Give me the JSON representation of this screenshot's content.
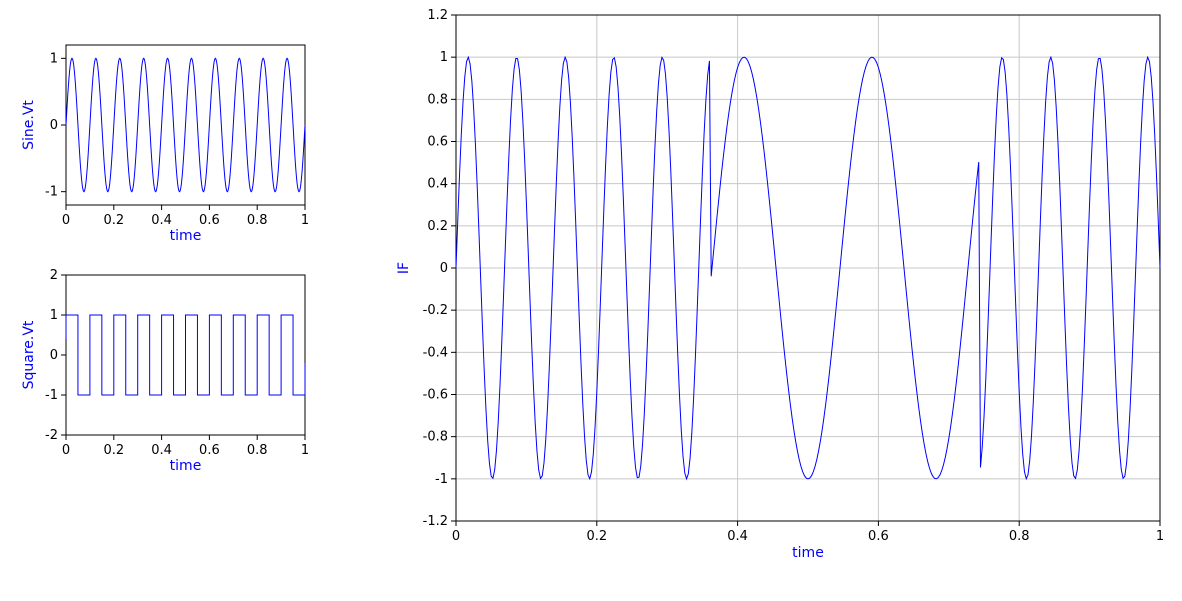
{
  "colors": {
    "trace": "#0000ff",
    "grid": "#c8c8c8",
    "frame": "#000000",
    "label": "#0000ff"
  },
  "chart_data": [
    {
      "id": "sine",
      "type": "line",
      "title": "",
      "xlabel": "time",
      "ylabel": "Sine.Vt",
      "xlim": [
        0,
        1
      ],
      "ylim": [
        -1.2,
        1.2
      ],
      "xticks": [
        0,
        0.2,
        0.4,
        0.6,
        0.8,
        1
      ],
      "xtick_labels": [
        "0",
        "0.2",
        "0.4",
        "0.6",
        "0.8",
        "1"
      ],
      "yticks": [
        -1,
        0,
        1
      ],
      "ytick_labels": [
        "-1",
        "0",
        "1"
      ],
      "grid": false,
      "series": [
        {
          "function": "sin(2*pi*f*time)",
          "frequency_hz": 10,
          "amplitude": 1,
          "x_samples": 400
        }
      ]
    },
    {
      "id": "square",
      "type": "line",
      "title": "",
      "xlabel": "time",
      "ylabel": "Square.Vt",
      "xlim": [
        0,
        1
      ],
      "ylim": [
        -2,
        2
      ],
      "xticks": [
        0,
        0.2,
        0.4,
        0.6,
        0.8,
        1
      ],
      "xtick_labels": [
        "0",
        "0.2",
        "0.4",
        "0.6",
        "0.8",
        "1"
      ],
      "yticks": [
        -2,
        -1,
        0,
        1,
        2
      ],
      "ytick_labels": [
        "-2",
        "-1",
        "0",
        "1",
        "2"
      ],
      "grid": false,
      "series": [
        {
          "function": "square wave",
          "frequency_hz": 10,
          "amplitude": 1,
          "x_samples": 400
        }
      ]
    },
    {
      "id": "if",
      "type": "line",
      "title": "",
      "xlabel": "time",
      "ylabel": "IF",
      "xlim": [
        0,
        1
      ],
      "ylim": [
        -1.2,
        1.2
      ],
      "xticks": [
        0,
        0.2,
        0.4,
        0.6,
        0.8,
        1
      ],
      "xtick_labels": [
        "0",
        "0.2",
        "0.4",
        "0.6",
        "0.8",
        "1"
      ],
      "yticks": [
        -1.2,
        -1,
        -0.8,
        -0.6,
        -0.4,
        -0.2,
        0,
        0.2,
        0.4,
        0.6,
        0.8,
        1,
        1.2
      ],
      "ytick_labels": [
        "-1.2",
        "-1",
        "-0.8",
        "-0.6",
        "-0.4",
        "-0.2",
        "0",
        "0.2",
        "0.4",
        "0.6",
        "0.8",
        "1",
        "1.2"
      ],
      "grid": true,
      "series": [
        {
          "function": "sin(2*pi*f*time + phase(time))",
          "carrier_frequency_hz": 10,
          "phase_modulation": "square wave of amplitude 2*pi/... not printed",
          "x_samples": 400
        }
      ]
    }
  ]
}
